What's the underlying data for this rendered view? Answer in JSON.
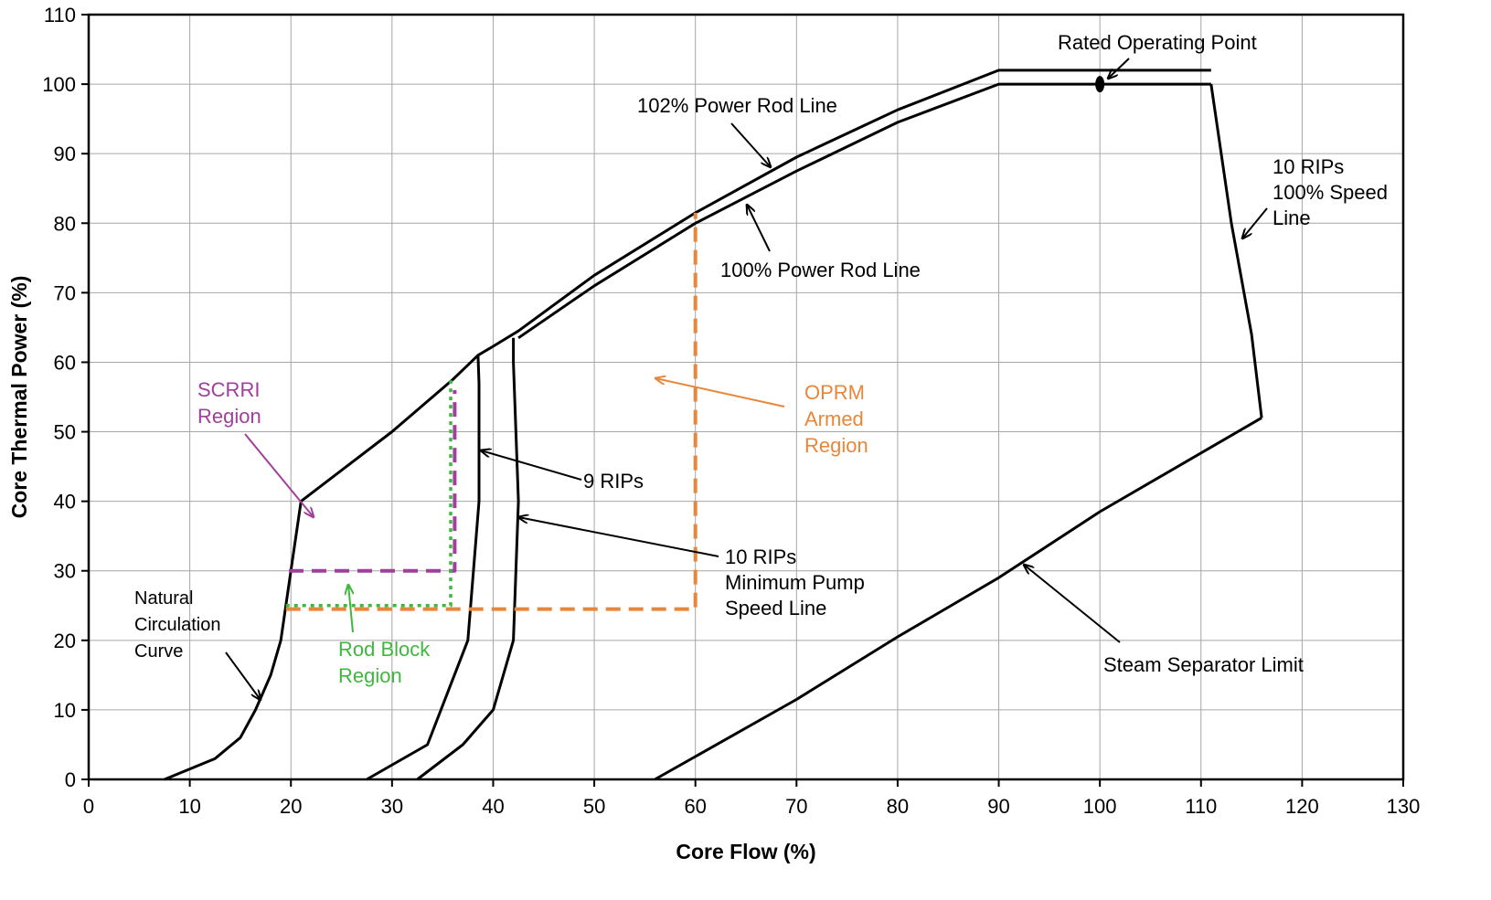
{
  "chart_data": {
    "type": "line",
    "xlabel": "Core Flow (%)",
    "ylabel": "Core Thermal Power (%)",
    "xlim": [
      0,
      130
    ],
    "ylim": [
      0,
      110
    ],
    "xticks": [
      0,
      10,
      20,
      30,
      40,
      50,
      60,
      70,
      80,
      90,
      100,
      110,
      120,
      130
    ],
    "yticks": [
      0,
      10,
      20,
      30,
      40,
      50,
      60,
      70,
      80,
      90,
      100,
      110
    ],
    "grid": true,
    "series": [
      {
        "key": "rod102",
        "color": "#000000",
        "style": "solid",
        "x": [
          21,
          30,
          36,
          38.5,
          40,
          42.5,
          50,
          60,
          70,
          80,
          90,
          111
        ],
        "y": [
          40,
          50,
          57.5,
          61,
          62.3,
          64.5,
          72.5,
          81.5,
          89.5,
          96.3,
          102,
          102
        ]
      },
      {
        "key": "rod100",
        "color": "#000000",
        "style": "solid",
        "x": [
          42.5,
          50,
          60,
          70,
          80,
          90,
          111
        ],
        "y": [
          63.5,
          71,
          80,
          87.5,
          94.5,
          100,
          100
        ]
      },
      {
        "key": "speed10",
        "color": "#000000",
        "style": "solid",
        "x": [
          111,
          113,
          115,
          116
        ],
        "y": [
          100,
          80,
          64,
          52
        ]
      },
      {
        "key": "separator",
        "color": "#000000",
        "style": "solid",
        "x": [
          56,
          70,
          80,
          90,
          100,
          116
        ],
        "y": [
          0,
          11.5,
          20.5,
          29,
          38.5,
          52
        ]
      },
      {
        "key": "rips9",
        "color": "#000000",
        "style": "solid",
        "x": [
          27.5,
          33.5,
          37.5,
          38.6,
          38.6,
          38.5
        ],
        "y": [
          0,
          5,
          20,
          40,
          57,
          61
        ]
      },
      {
        "key": "rips10",
        "color": "#000000",
        "style": "solid",
        "x": [
          32.5,
          37,
          40,
          42,
          42.5,
          42,
          42
        ],
        "y": [
          0,
          5,
          10,
          20,
          40,
          60,
          63.5
        ]
      },
      {
        "key": "natural",
        "color": "#000000",
        "style": "solid",
        "x": [
          7.5,
          10,
          12.5,
          15,
          16.5,
          18,
          19,
          20,
          21
        ],
        "y": [
          0,
          1.5,
          3,
          6,
          10,
          15,
          20,
          30,
          40
        ]
      },
      {
        "key": "scrri",
        "color": "#a0409c",
        "style": "dashed",
        "x": [
          19.8,
          36.2,
          36.2
        ],
        "y": [
          30,
          30,
          56
        ]
      },
      {
        "key": "rodblock",
        "color": "#3fb83f",
        "style": "dotted",
        "x": [
          19.5,
          35.8,
          35.8
        ],
        "y": [
          25,
          25,
          57.5
        ]
      },
      {
        "key": "oprm",
        "color": "#e8873a",
        "style": "dashed",
        "x": [
          19.5,
          60,
          60
        ],
        "y": [
          24.5,
          24.5,
          81.5
        ]
      }
    ],
    "marker": {
      "x": 100,
      "y": 100
    },
    "annotations": [
      {
        "key": "rated",
        "lines": [
          "Rated Operating Point"
        ],
        "color": "#000000"
      },
      {
        "key": "rod102",
        "lines": [
          "102% Power Rod Line"
        ],
        "color": "#000000"
      },
      {
        "key": "rod100",
        "lines": [
          "100% Power Rod Line"
        ],
        "color": "#000000"
      },
      {
        "key": "speed10",
        "lines": [
          "10 RIPs",
          "100% Speed",
          "Line"
        ],
        "color": "#000000"
      },
      {
        "key": "scrri",
        "lines": [
          "SCRRI",
          "Region"
        ],
        "color": "#a0409c"
      },
      {
        "key": "oprm",
        "lines": [
          "OPRM",
          "Armed",
          "Region"
        ],
        "color": "#e8873a"
      },
      {
        "key": "rips9",
        "lines": [
          "9 RIPs"
        ],
        "color": "#000000"
      },
      {
        "key": "rips10",
        "lines": [
          "10 RIPs",
          "Minimum Pump",
          "Speed Line"
        ],
        "color": "#000000"
      },
      {
        "key": "natural",
        "lines": [
          "Natural",
          "Circulation",
          "Curve"
        ],
        "color": "#000000"
      },
      {
        "key": "rodblock",
        "lines": [
          "Rod Block",
          "Region"
        ],
        "color": "#3fb83f"
      },
      {
        "key": "separator",
        "lines": [
          "Steam Separator Limit"
        ],
        "color": "#000000"
      }
    ]
  }
}
